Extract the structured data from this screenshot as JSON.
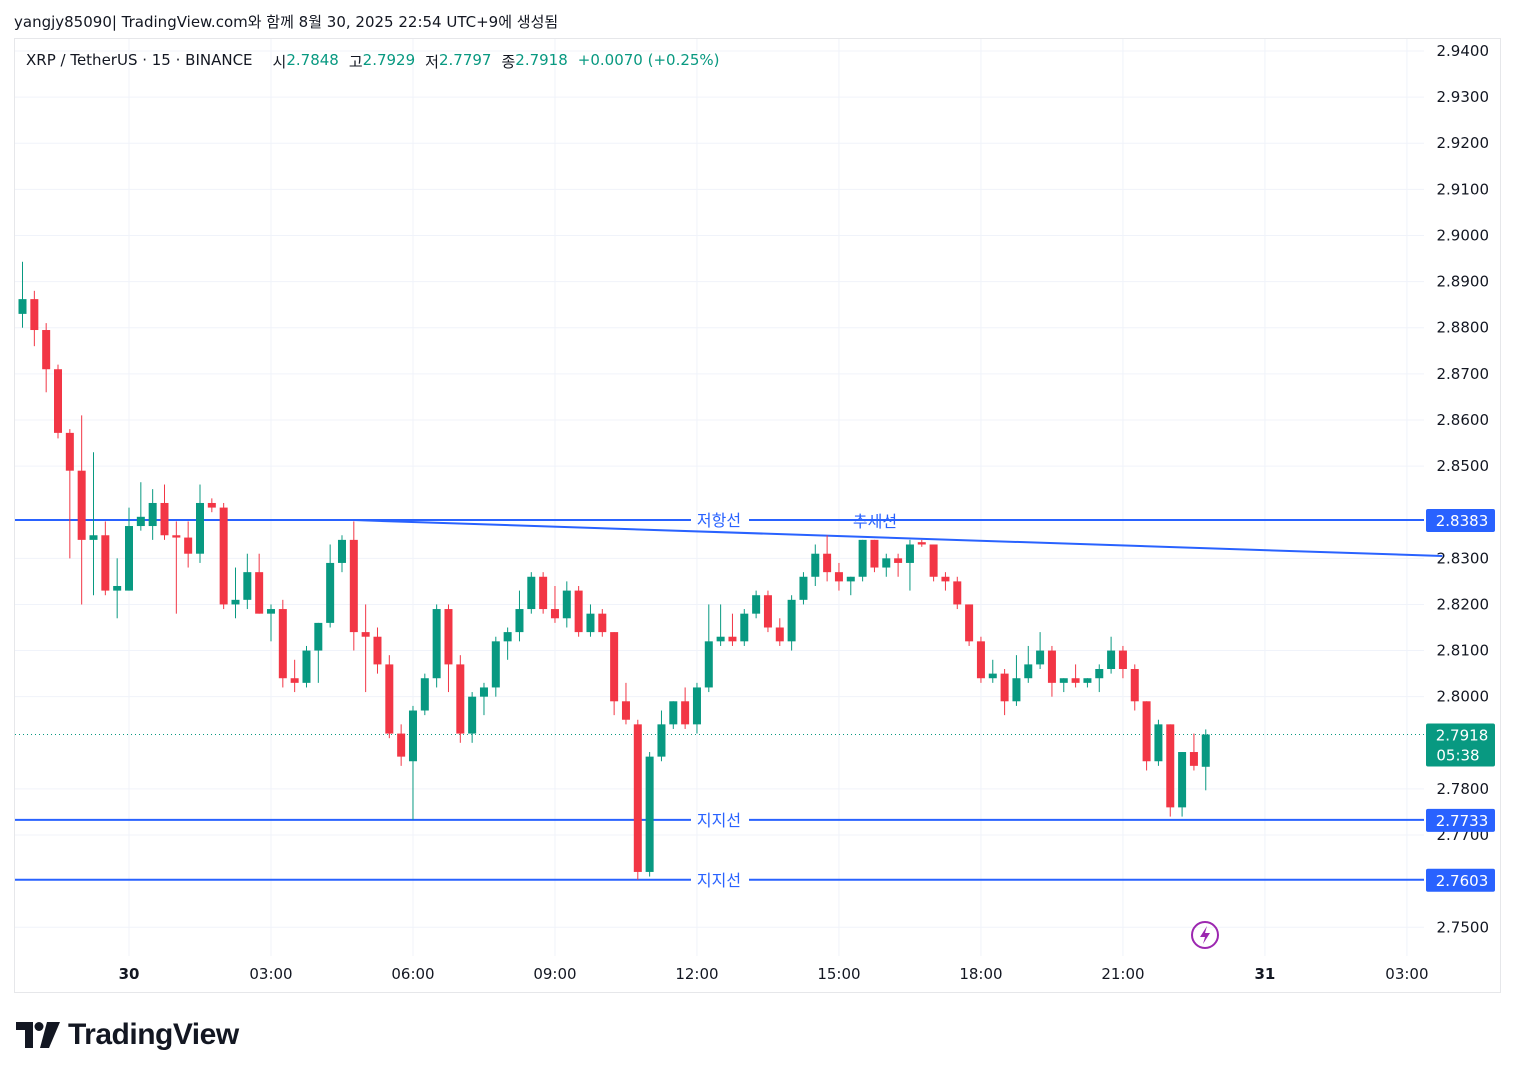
{
  "caption": "yangjy85090| TradingView.com와 함께 8월 30, 2025 22:54 UTC+9에 생성됨",
  "legend": {
    "symbol": "XRP / TetherUS · 15 · BINANCE",
    "open_label": "시",
    "open": "2.7848",
    "high_label": "고",
    "high": "2.7929",
    "low_label": "저",
    "low": "2.7797",
    "close_label": "종",
    "close": "2.7918",
    "change": "+0.0070 (+0.25%)"
  },
  "brand": "TradingView",
  "colors": {
    "up": "#089981",
    "down": "#f23645",
    "line": "#2962ff",
    "grid": "#f0f3fa",
    "lightning": "#9c27b0"
  },
  "icons": {
    "lightning": "lightning-icon",
    "logo": "tradingview-logo-icon"
  },
  "chart_data": {
    "type": "candlestick",
    "interval": "15",
    "ylim": [
      2.745,
      2.945
    ],
    "y_ticks": [
      "2.9400",
      "2.9300",
      "2.9200",
      "2.9100",
      "2.9000",
      "2.8900",
      "2.8800",
      "2.8700",
      "2.8600",
      "2.8500",
      "2.8300",
      "2.8200",
      "2.8100",
      "2.8000",
      "2.7800",
      "2.7700",
      "2.7500"
    ],
    "x_ticks": [
      {
        "label": "30",
        "hour": 0,
        "bold": true
      },
      {
        "label": "03:00",
        "hour": 3
      },
      {
        "label": "06:00",
        "hour": 6
      },
      {
        "label": "09:00",
        "hour": 9
      },
      {
        "label": "12:00",
        "hour": 12
      },
      {
        "label": "15:00",
        "hour": 15
      },
      {
        "label": "18:00",
        "hour": 18
      },
      {
        "label": "21:00",
        "hour": 21
      },
      {
        "label": "31",
        "hour": 24,
        "bold": true
      },
      {
        "label": "03:00",
        "hour": 27
      }
    ],
    "candles": [
      {
        "t": -2.25,
        "o": 2.883,
        "h": 2.8943,
        "l": 2.88,
        "c": 2.8862
      },
      {
        "t": -2.0,
        "o": 2.8862,
        "h": 2.888,
        "l": 2.876,
        "c": 2.8795
      },
      {
        "t": -1.75,
        "o": 2.8795,
        "h": 2.881,
        "l": 2.866,
        "c": 2.871
      },
      {
        "t": -1.5,
        "o": 2.871,
        "h": 2.872,
        "l": 2.856,
        "c": 2.8572
      },
      {
        "t": -1.25,
        "o": 2.8572,
        "h": 2.858,
        "l": 2.83,
        "c": 2.849
      },
      {
        "t": -1.0,
        "o": 2.849,
        "h": 2.861,
        "l": 2.82,
        "c": 2.834
      },
      {
        "t": -0.75,
        "o": 2.834,
        "h": 2.853,
        "l": 2.822,
        "c": 2.835
      },
      {
        "t": -0.5,
        "o": 2.835,
        "h": 2.838,
        "l": 2.822,
        "c": 2.823
      },
      {
        "t": -0.25,
        "o": 2.823,
        "h": 2.83,
        "l": 2.817,
        "c": 2.824
      },
      {
        "t": 0.0,
        "o": 2.823,
        "h": 2.841,
        "l": 2.823,
        "c": 2.837
      },
      {
        "t": 0.25,
        "o": 2.837,
        "h": 2.8465,
        "l": 2.836,
        "c": 2.839
      },
      {
        "t": 0.5,
        "o": 2.837,
        "h": 2.845,
        "l": 2.834,
        "c": 2.842
      },
      {
        "t": 0.75,
        "o": 2.842,
        "h": 2.846,
        "l": 2.834,
        "c": 2.835
      },
      {
        "t": 1.0,
        "o": 2.835,
        "h": 2.838,
        "l": 2.818,
        "c": 2.8345
      },
      {
        "t": 1.25,
        "o": 2.8345,
        "h": 2.838,
        "l": 2.828,
        "c": 2.831
      },
      {
        "t": 1.5,
        "o": 2.831,
        "h": 2.846,
        "l": 2.829,
        "c": 2.842
      },
      {
        "t": 1.75,
        "o": 2.842,
        "h": 2.843,
        "l": 2.84,
        "c": 2.841
      },
      {
        "t": 2.0,
        "o": 2.841,
        "h": 2.842,
        "l": 2.819,
        "c": 2.82
      },
      {
        "t": 2.25,
        "o": 2.82,
        "h": 2.828,
        "l": 2.817,
        "c": 2.821
      },
      {
        "t": 2.5,
        "o": 2.821,
        "h": 2.831,
        "l": 2.819,
        "c": 2.827
      },
      {
        "t": 2.75,
        "o": 2.827,
        "h": 2.831,
        "l": 2.818,
        "c": 2.818
      },
      {
        "t": 3.0,
        "o": 2.818,
        "h": 2.82,
        "l": 2.812,
        "c": 2.819
      },
      {
        "t": 3.25,
        "o": 2.819,
        "h": 2.821,
        "l": 2.802,
        "c": 2.804
      },
      {
        "t": 3.5,
        "o": 2.804,
        "h": 2.808,
        "l": 2.801,
        "c": 2.803
      },
      {
        "t": 3.75,
        "o": 2.803,
        "h": 2.811,
        "l": 2.802,
        "c": 2.81
      },
      {
        "t": 4.0,
        "o": 2.81,
        "h": 2.816,
        "l": 2.803,
        "c": 2.816
      },
      {
        "t": 4.25,
        "o": 2.816,
        "h": 2.833,
        "l": 2.815,
        "c": 2.829
      },
      {
        "t": 4.5,
        "o": 2.829,
        "h": 2.835,
        "l": 2.827,
        "c": 2.834
      },
      {
        "t": 4.75,
        "o": 2.834,
        "h": 2.838,
        "l": 2.81,
        "c": 2.814
      },
      {
        "t": 5.0,
        "o": 2.814,
        "h": 2.82,
        "l": 2.801,
        "c": 2.813
      },
      {
        "t": 5.25,
        "o": 2.813,
        "h": 2.815,
        "l": 2.805,
        "c": 2.807
      },
      {
        "t": 5.5,
        "o": 2.807,
        "h": 2.809,
        "l": 2.791,
        "c": 2.792
      },
      {
        "t": 5.75,
        "o": 2.792,
        "h": 2.794,
        "l": 2.785,
        "c": 2.787
      },
      {
        "t": 6.0,
        "o": 2.786,
        "h": 2.798,
        "l": 2.7733,
        "c": 2.797
      },
      {
        "t": 6.25,
        "o": 2.797,
        "h": 2.805,
        "l": 2.796,
        "c": 2.804
      },
      {
        "t": 6.5,
        "o": 2.804,
        "h": 2.82,
        "l": 2.802,
        "c": 2.819
      },
      {
        "t": 6.75,
        "o": 2.819,
        "h": 2.82,
        "l": 2.801,
        "c": 2.807
      },
      {
        "t": 7.0,
        "o": 2.807,
        "h": 2.809,
        "l": 2.79,
        "c": 2.792
      },
      {
        "t": 7.25,
        "o": 2.792,
        "h": 2.801,
        "l": 2.79,
        "c": 2.8
      },
      {
        "t": 7.5,
        "o": 2.8,
        "h": 2.803,
        "l": 2.796,
        "c": 2.802
      },
      {
        "t": 7.75,
        "o": 2.802,
        "h": 2.813,
        "l": 2.8,
        "c": 2.812
      },
      {
        "t": 8.0,
        "o": 2.812,
        "h": 2.815,
        "l": 2.808,
        "c": 2.814
      },
      {
        "t": 8.25,
        "o": 2.814,
        "h": 2.823,
        "l": 2.812,
        "c": 2.819
      },
      {
        "t": 8.5,
        "o": 2.819,
        "h": 2.827,
        "l": 2.818,
        "c": 2.826
      },
      {
        "t": 8.75,
        "o": 2.826,
        "h": 2.827,
        "l": 2.818,
        "c": 2.819
      },
      {
        "t": 9.0,
        "o": 2.819,
        "h": 2.824,
        "l": 2.816,
        "c": 2.817
      },
      {
        "t": 9.25,
        "o": 2.817,
        "h": 2.825,
        "l": 2.815,
        "c": 2.823
      },
      {
        "t": 9.5,
        "o": 2.823,
        "h": 2.824,
        "l": 2.813,
        "c": 2.814
      },
      {
        "t": 9.75,
        "o": 2.814,
        "h": 2.82,
        "l": 2.813,
        "c": 2.818
      },
      {
        "t": 10.0,
        "o": 2.818,
        "h": 2.819,
        "l": 2.813,
        "c": 2.814
      },
      {
        "t": 10.25,
        "o": 2.814,
        "h": 2.814,
        "l": 2.796,
        "c": 2.799
      },
      {
        "t": 10.5,
        "o": 2.799,
        "h": 2.803,
        "l": 2.794,
        "c": 2.795
      },
      {
        "t": 10.75,
        "o": 2.794,
        "h": 2.795,
        "l": 2.7603,
        "c": 2.762
      },
      {
        "t": 11.0,
        "o": 2.762,
        "h": 2.788,
        "l": 2.761,
        "c": 2.787
      },
      {
        "t": 11.25,
        "o": 2.787,
        "h": 2.797,
        "l": 2.786,
        "c": 2.794
      },
      {
        "t": 11.5,
        "o": 2.794,
        "h": 2.799,
        "l": 2.793,
        "c": 2.799
      },
      {
        "t": 11.75,
        "o": 2.799,
        "h": 2.802,
        "l": 2.793,
        "c": 2.794
      },
      {
        "t": 12.0,
        "o": 2.794,
        "h": 2.803,
        "l": 2.792,
        "c": 2.802
      },
      {
        "t": 12.25,
        "o": 2.802,
        "h": 2.82,
        "l": 2.801,
        "c": 2.812
      },
      {
        "t": 12.5,
        "o": 2.812,
        "h": 2.82,
        "l": 2.811,
        "c": 2.813
      },
      {
        "t": 12.75,
        "o": 2.813,
        "h": 2.818,
        "l": 2.811,
        "c": 2.812
      },
      {
        "t": 13.0,
        "o": 2.812,
        "h": 2.819,
        "l": 2.811,
        "c": 2.818
      },
      {
        "t": 13.25,
        "o": 2.818,
        "h": 2.823,
        "l": 2.817,
        "c": 2.822
      },
      {
        "t": 13.5,
        "o": 2.822,
        "h": 2.823,
        "l": 2.814,
        "c": 2.815
      },
      {
        "t": 13.75,
        "o": 2.815,
        "h": 2.817,
        "l": 2.811,
        "c": 2.812
      },
      {
        "t": 14.0,
        "o": 2.812,
        "h": 2.822,
        "l": 2.81,
        "c": 2.821
      },
      {
        "t": 14.25,
        "o": 2.821,
        "h": 2.827,
        "l": 2.82,
        "c": 2.826
      },
      {
        "t": 14.5,
        "o": 2.826,
        "h": 2.833,
        "l": 2.824,
        "c": 2.831
      },
      {
        "t": 14.75,
        "o": 2.831,
        "h": 2.835,
        "l": 2.825,
        "c": 2.827
      },
      {
        "t": 15.0,
        "o": 2.827,
        "h": 2.829,
        "l": 2.823,
        "c": 2.825
      },
      {
        "t": 15.25,
        "o": 2.825,
        "h": 2.826,
        "l": 2.822,
        "c": 2.826
      },
      {
        "t": 15.5,
        "o": 2.826,
        "h": 2.834,
        "l": 2.825,
        "c": 2.834
      },
      {
        "t": 15.75,
        "o": 2.834,
        "h": 2.834,
        "l": 2.827,
        "c": 2.828
      },
      {
        "t": 16.0,
        "o": 2.828,
        "h": 2.831,
        "l": 2.826,
        "c": 2.83
      },
      {
        "t": 16.25,
        "o": 2.83,
        "h": 2.831,
        "l": 2.826,
        "c": 2.829
      },
      {
        "t": 16.5,
        "o": 2.829,
        "h": 2.834,
        "l": 2.823,
        "c": 2.833
      },
      {
        "t": 16.75,
        "o": 2.8335,
        "h": 2.834,
        "l": 2.8325,
        "c": 2.833
      },
      {
        "t": 17.0,
        "o": 2.833,
        "h": 2.833,
        "l": 2.825,
        "c": 2.826
      },
      {
        "t": 17.25,
        "o": 2.826,
        "h": 2.827,
        "l": 2.823,
        "c": 2.825
      },
      {
        "t": 17.5,
        "o": 2.825,
        "h": 2.826,
        "l": 2.819,
        "c": 2.82
      },
      {
        "t": 17.75,
        "o": 2.82,
        "h": 2.82,
        "l": 2.811,
        "c": 2.812
      },
      {
        "t": 18.0,
        "o": 2.812,
        "h": 2.813,
        "l": 2.803,
        "c": 2.804
      },
      {
        "t": 18.25,
        "o": 2.804,
        "h": 2.808,
        "l": 2.803,
        "c": 2.805
      },
      {
        "t": 18.5,
        "o": 2.805,
        "h": 2.806,
        "l": 2.796,
        "c": 2.799
      },
      {
        "t": 18.75,
        "o": 2.799,
        "h": 2.809,
        "l": 2.798,
        "c": 2.804
      },
      {
        "t": 19.0,
        "o": 2.804,
        "h": 2.811,
        "l": 2.803,
        "c": 2.807
      },
      {
        "t": 19.25,
        "o": 2.807,
        "h": 2.814,
        "l": 2.806,
        "c": 2.81
      },
      {
        "t": 19.5,
        "o": 2.81,
        "h": 2.811,
        "l": 2.8,
        "c": 2.803
      },
      {
        "t": 19.75,
        "o": 2.803,
        "h": 2.804,
        "l": 2.801,
        "c": 2.804
      },
      {
        "t": 20.0,
        "o": 2.804,
        "h": 2.807,
        "l": 2.802,
        "c": 2.803
      },
      {
        "t": 20.25,
        "o": 2.803,
        "h": 2.804,
        "l": 2.802,
        "c": 2.804
      },
      {
        "t": 20.5,
        "o": 2.804,
        "h": 2.807,
        "l": 2.801,
        "c": 2.806
      },
      {
        "t": 20.75,
        "o": 2.806,
        "h": 2.813,
        "l": 2.805,
        "c": 2.81
      },
      {
        "t": 21.0,
        "o": 2.81,
        "h": 2.811,
        "l": 2.804,
        "c": 2.806
      },
      {
        "t": 21.25,
        "o": 2.806,
        "h": 2.807,
        "l": 2.797,
        "c": 2.799
      },
      {
        "t": 21.5,
        "o": 2.799,
        "h": 2.799,
        "l": 2.784,
        "c": 2.786
      },
      {
        "t": 21.75,
        "o": 2.786,
        "h": 2.795,
        "l": 2.785,
        "c": 2.794
      },
      {
        "t": 22.0,
        "o": 2.794,
        "h": 2.794,
        "l": 2.774,
        "c": 2.776
      },
      {
        "t": 22.25,
        "o": 2.776,
        "h": 2.788,
        "l": 2.774,
        "c": 2.788
      },
      {
        "t": 22.5,
        "o": 2.788,
        "h": 2.792,
        "l": 2.784,
        "c": 2.785
      },
      {
        "t": 22.75,
        "o": 2.7848,
        "h": 2.7929,
        "l": 2.7797,
        "c": 2.7918
      }
    ],
    "horizontal_lines": [
      {
        "price": 2.8383,
        "label": "저항선",
        "badge": "2.8383"
      },
      {
        "price": 2.7733,
        "label": "지지선",
        "badge": "2.7733"
      },
      {
        "price": 2.7603,
        "label": "지지선",
        "badge": "2.7603"
      }
    ],
    "trend_line": {
      "label": "추세선",
      "start": {
        "t": 4.75,
        "price": 2.8383
      },
      "end": {
        "t": 27.75,
        "price": 2.8305
      }
    },
    "last_price": {
      "price": 2.7918,
      "badge": "2.7918",
      "countdown": "05:38"
    }
  }
}
